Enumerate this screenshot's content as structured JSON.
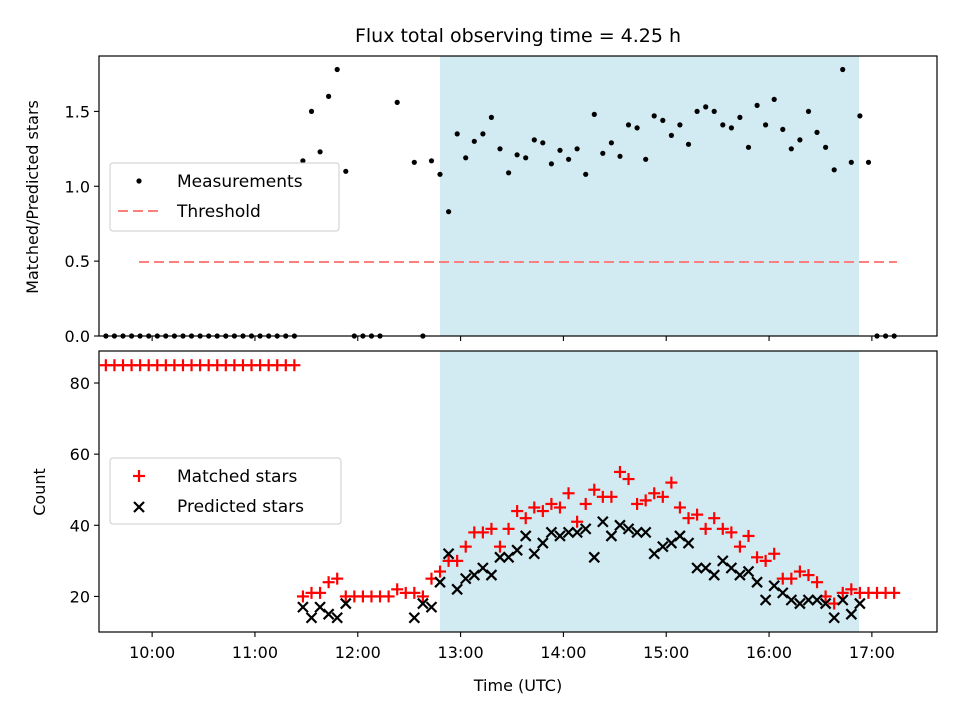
{
  "title": "Flux total observing time = 4.25 h",
  "colors": {
    "band": "#add8e6",
    "measurement": "#000000",
    "threshold": "#ff7f7f",
    "matched": "#ff0000",
    "predicted": "#000000"
  },
  "chart_data": [
    {
      "type": "scatter",
      "ylabel": "Matched/Predicted stars",
      "ylim": [
        0,
        1.87
      ],
      "yticks": [
        0.0,
        0.5,
        1.0,
        1.5
      ],
      "ytick_labels": [
        "0.0",
        "0.5",
        "1.0",
        "1.5"
      ],
      "xlim": [
        "09:29",
        "17:38"
      ],
      "grid": false,
      "legend_position": "left",
      "observing_window": [
        "12:36",
        "16:51"
      ],
      "threshold": {
        "name": "Threshold",
        "y": 0.5,
        "x_range": [
          "09:33",
          "17:13"
        ]
      },
      "series": [
        {
          "name": "Measurements",
          "marker": "dot",
          "x": [
            "09:33",
            "09:38",
            "09:43",
            "09:48",
            "09:53",
            "09:58",
            "10:03",
            "10:08",
            "10:13",
            "10:18",
            "10:23",
            "10:28",
            "10:33",
            "10:38",
            "10:43",
            "10:48",
            "10:53",
            "10:58",
            "11:03",
            "11:08",
            "11:13",
            "11:18",
            "11:23",
            "11:28",
            "11:33",
            "11:38",
            "11:43",
            "11:48",
            "11:53",
            "11:58",
            "12:03",
            "12:08",
            "12:13",
            "12:23",
            "12:33",
            "12:38",
            "12:43",
            "12:48",
            "12:53",
            "12:58",
            "13:03",
            "13:08",
            "13:13",
            "13:18",
            "13:23",
            "13:28",
            "13:33",
            "13:38",
            "13:43",
            "13:48",
            "13:53",
            "13:58",
            "14:03",
            "14:08",
            "14:13",
            "14:18",
            "14:23",
            "14:28",
            "14:33",
            "14:38",
            "14:43",
            "14:48",
            "14:53",
            "14:58",
            "15:03",
            "15:08",
            "15:13",
            "15:18",
            "15:23",
            "15:28",
            "15:33",
            "15:38",
            "15:43",
            "15:48",
            "15:53",
            "15:58",
            "16:03",
            "16:08",
            "16:13",
            "16:18",
            "16:23",
            "16:28",
            "16:33",
            "16:38",
            "16:43",
            "16:48",
            "16:53",
            "16:58",
            "17:03",
            "17:08",
            "17:13"
          ],
          "y": [
            0,
            0,
            0,
            0,
            0,
            0,
            0,
            0,
            0,
            0,
            0,
            0,
            0,
            0,
            0,
            0,
            0,
            0,
            0,
            0,
            0,
            0,
            0,
            1.17,
            1.5,
            1.23,
            1.6,
            1.78,
            1.1,
            0,
            0,
            0,
            0,
            1.56,
            1.16,
            0,
            1.17,
            1.08,
            0.83,
            1.35,
            1.19,
            1.3,
            1.35,
            1.46,
            1.25,
            1.09,
            1.21,
            1.19,
            1.31,
            1.29,
            1.15,
            1.24,
            1.18,
            1.25,
            1.08,
            1.48,
            1.22,
            1.29,
            1.2,
            1.41,
            1.39,
            1.18,
            1.47,
            1.44,
            1.34,
            1.41,
            1.28,
            1.5,
            1.53,
            1.5,
            1.41,
            1.39,
            1.46,
            1.26,
            1.54,
            1.41,
            1.58,
            1.38,
            1.25,
            1.31,
            1.5,
            1.36,
            1.26,
            1.11,
            1.78,
            1.16,
            1.47,
            1.16,
            0,
            0,
            0
          ]
        }
      ]
    },
    {
      "type": "scatter",
      "xlabel": "Time (UTC)",
      "ylabel": "Count",
      "ylim": [
        10,
        89
      ],
      "yticks": [
        20,
        40,
        60,
        80
      ],
      "ytick_labels": [
        "20",
        "40",
        "60",
        "80"
      ],
      "xlim": [
        "09:29",
        "17:38"
      ],
      "xticks": [
        "10:00",
        "11:00",
        "12:00",
        "13:00",
        "14:00",
        "15:00",
        "16:00",
        "17:00"
      ],
      "grid": false,
      "legend_position": "left",
      "observing_window": [
        "12:36",
        "16:51"
      ],
      "series": [
        {
          "name": "Matched stars",
          "marker": "plus",
          "x": [
            "09:33",
            "09:38",
            "09:43",
            "09:48",
            "09:53",
            "09:58",
            "10:03",
            "10:08",
            "10:13",
            "10:18",
            "10:23",
            "10:28",
            "10:33",
            "10:38",
            "10:43",
            "10:48",
            "10:53",
            "10:58",
            "11:03",
            "11:08",
            "11:13",
            "11:18",
            "11:23",
            "11:28",
            "11:33",
            "11:38",
            "11:43",
            "11:48",
            "11:53",
            "11:58",
            "12:03",
            "12:08",
            "12:13",
            "12:18",
            "12:23",
            "12:28",
            "12:33",
            "12:38",
            "12:43",
            "12:48",
            "12:53",
            "12:58",
            "13:03",
            "13:08",
            "13:13",
            "13:18",
            "13:23",
            "13:28",
            "13:33",
            "13:38",
            "13:43",
            "13:48",
            "13:53",
            "13:58",
            "14:03",
            "14:08",
            "14:13",
            "14:18",
            "14:23",
            "14:28",
            "14:33",
            "14:38",
            "14:43",
            "14:48",
            "14:53",
            "14:58",
            "15:03",
            "15:08",
            "15:13",
            "15:18",
            "15:23",
            "15:28",
            "15:33",
            "15:38",
            "15:43",
            "15:48",
            "15:53",
            "15:58",
            "16:03",
            "16:08",
            "16:13",
            "16:18",
            "16:23",
            "16:28",
            "16:33",
            "16:38",
            "16:43",
            "16:48",
            "16:53",
            "16:58",
            "17:03",
            "17:08",
            "17:13"
          ],
          "y": [
            85,
            85,
            85,
            85,
            85,
            85,
            85,
            85,
            85,
            85,
            85,
            85,
            85,
            85,
            85,
            85,
            85,
            85,
            85,
            85,
            85,
            85,
            85,
            20,
            21,
            21,
            24,
            25,
            20,
            20,
            20,
            20,
            20,
            20,
            22,
            21,
            21,
            20,
            25,
            27,
            30,
            30,
            34,
            38,
            38,
            39,
            34,
            39,
            44,
            42,
            45,
            44,
            46,
            45,
            49,
            41,
            46,
            50,
            48,
            48,
            55,
            53,
            46,
            47,
            49,
            48,
            52,
            45,
            42,
            43,
            39,
            42,
            39,
            38,
            34,
            37,
            31,
            30,
            32,
            25,
            25,
            27,
            26,
            24,
            20,
            18,
            21,
            22,
            21,
            21,
            21,
            21,
            21
          ]
        },
        {
          "name": "Predicted stars",
          "marker": "x",
          "x": [
            "11:28",
            "11:33",
            "11:38",
            "11:43",
            "11:48",
            "11:53",
            "12:33",
            "12:38",
            "12:43",
            "12:48",
            "12:53",
            "12:58",
            "13:03",
            "13:08",
            "13:13",
            "13:18",
            "13:23",
            "13:28",
            "13:33",
            "13:38",
            "13:43",
            "13:48",
            "13:53",
            "13:58",
            "14:03",
            "14:08",
            "14:13",
            "14:18",
            "14:23",
            "14:28",
            "14:33",
            "14:38",
            "14:43",
            "14:48",
            "14:53",
            "14:58",
            "15:03",
            "15:08",
            "15:13",
            "15:18",
            "15:23",
            "15:28",
            "15:33",
            "15:38",
            "15:43",
            "15:48",
            "15:53",
            "15:58",
            "16:03",
            "16:08",
            "16:13",
            "16:18",
            "16:23",
            "16:28",
            "16:33",
            "16:38",
            "16:43",
            "16:48",
            "16:53"
          ],
          "y": [
            17,
            14,
            17,
            15,
            14,
            18,
            14,
            18,
            17,
            24,
            32,
            22,
            25,
            26,
            28,
            26,
            31,
            31,
            33,
            37,
            32,
            35,
            38,
            37,
            38,
            38,
            39,
            31,
            41,
            37,
            40,
            39,
            38,
            38,
            32,
            34,
            35,
            37,
            35,
            28,
            28,
            26,
            30,
            28,
            26,
            27,
            24,
            19,
            23,
            21,
            19,
            18,
            19,
            19,
            18,
            14,
            19,
            15,
            18
          ]
        }
      ]
    }
  ]
}
